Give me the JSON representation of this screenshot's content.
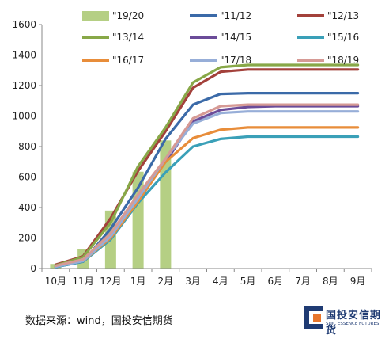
{
  "chart_data": {
    "type": "line",
    "categories": [
      "10月",
      "11月",
      "12月",
      "1月",
      "2月",
      "3月",
      "4月",
      "5月",
      "6月",
      "7月",
      "8月",
      "9月"
    ],
    "ylim": [
      0,
      1600
    ],
    "yticks": [
      0,
      200,
      400,
      600,
      800,
      1000,
      1200,
      1400,
      1600
    ],
    "grid": false,
    "legend_position": "top",
    "bar_series": {
      "name": "\"19/20",
      "color": "#b5cf84",
      "values": [
        30,
        125,
        380,
        635,
        840
      ]
    },
    "series": [
      {
        "name": "\"11/12",
        "color": "#3b6aa8",
        "values": [
          10,
          45,
          260,
          530,
          850,
          1075,
          1145,
          1150,
          1150,
          1150,
          1150,
          1150
        ]
      },
      {
        "name": "\"12/13",
        "color": "#a3413b",
        "values": [
          25,
          80,
          330,
          640,
          900,
          1185,
          1290,
          1305,
          1305,
          1305,
          1305,
          1305
        ]
      },
      {
        "name": "\"13/14",
        "color": "#88a848",
        "values": [
          20,
          75,
          300,
          670,
          925,
          1220,
          1320,
          1335,
          1335,
          1335,
          1335,
          1335
        ]
      },
      {
        "name": "\"14/15",
        "color": "#6b4c99",
        "values": [
          15,
          55,
          230,
          470,
          700,
          965,
          1040,
          1060,
          1065,
          1065,
          1065,
          1065
        ]
      },
      {
        "name": "\"15/16",
        "color": "#3aa0b8",
        "values": [
          10,
          45,
          190,
          430,
          630,
          800,
          850,
          865,
          865,
          865,
          865,
          865
        ]
      },
      {
        "name": "\"16/17",
        "color": "#e88d3a",
        "values": [
          15,
          50,
          200,
          440,
          700,
          855,
          910,
          925,
          925,
          925,
          925,
          925
        ]
      },
      {
        "name": "\"17/18",
        "color": "#97aed8",
        "values": [
          12,
          50,
          210,
          460,
          720,
          950,
          1020,
          1030,
          1030,
          1030,
          1030,
          1030
        ]
      },
      {
        "name": "\"18/19",
        "color": "#d69a95",
        "values": [
          18,
          60,
          230,
          485,
          720,
          985,
          1065,
          1075,
          1075,
          1075,
          1075,
          1075
        ]
      }
    ]
  },
  "source_text": "数据来源：wind，国投安信期货",
  "logo": {
    "name_cn": "国投安信期货",
    "name_en": "SDIC ESSENCE FUTURES"
  }
}
